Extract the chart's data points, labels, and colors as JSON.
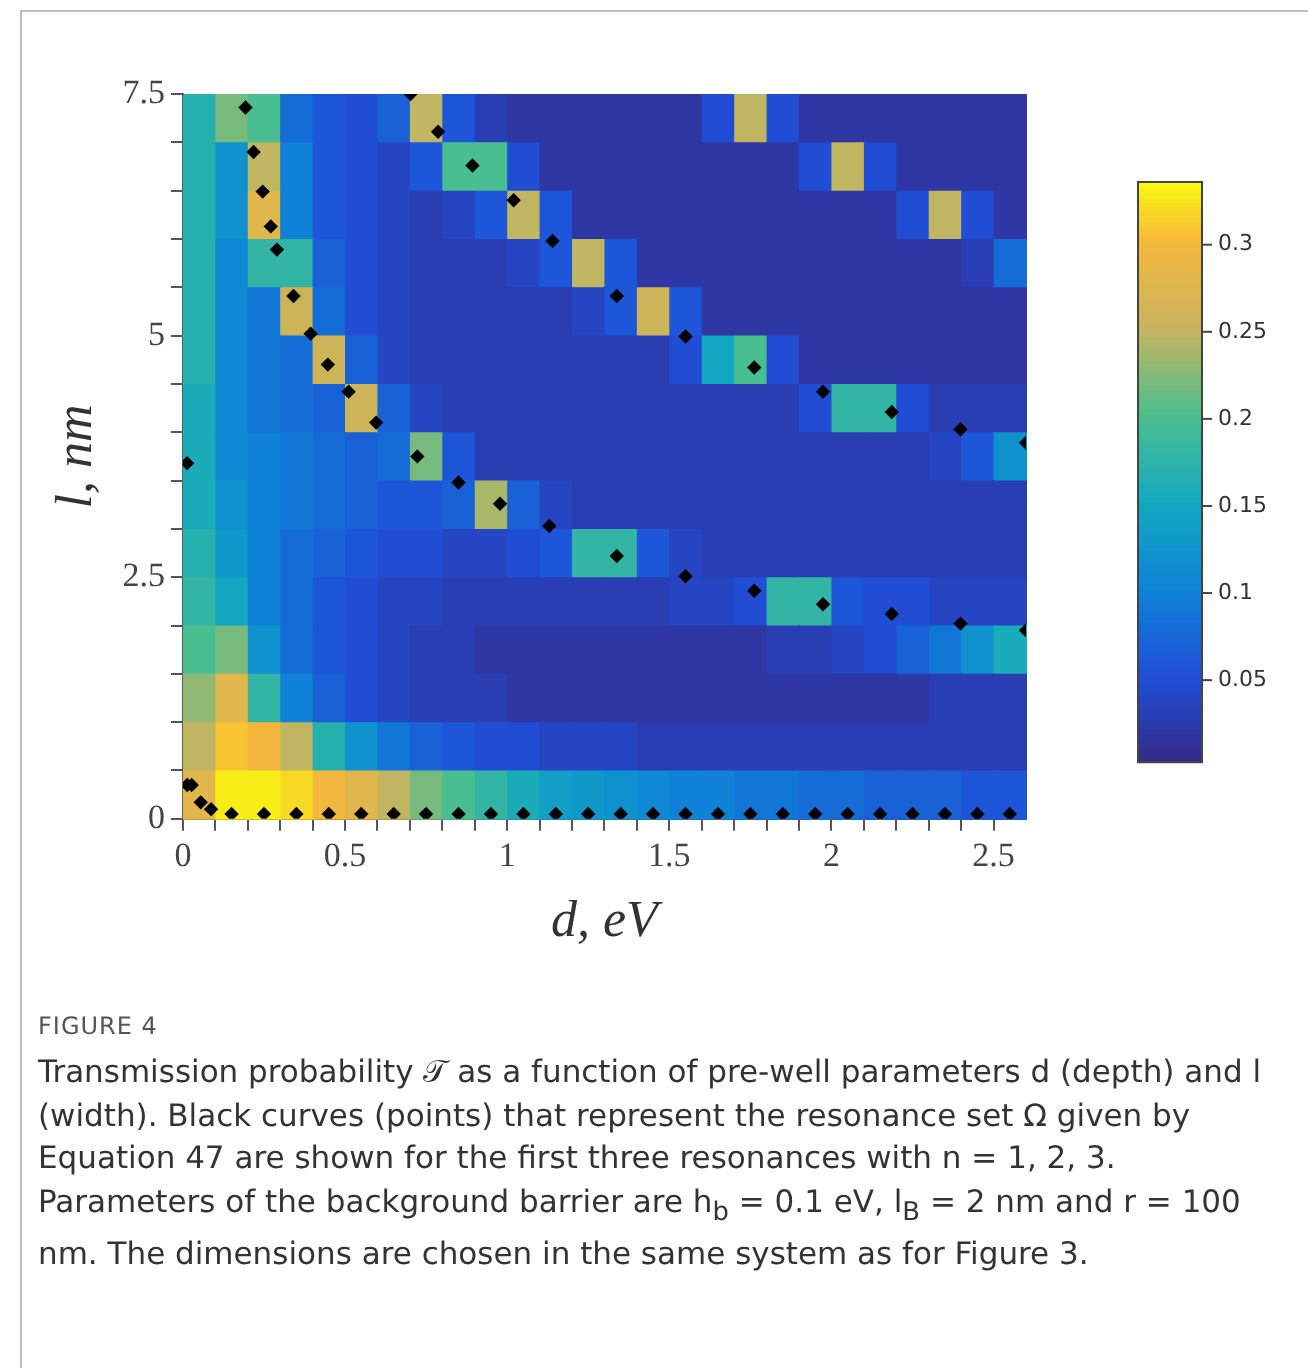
{
  "chart_data": {
    "type": "heatmap",
    "xlabel": "d, eV",
    "ylabel": "l, nm",
    "x": [
      0.05,
      0.15,
      0.25,
      0.35,
      0.45,
      0.55,
      0.65,
      0.75,
      0.85,
      0.95,
      1.05,
      1.15,
      1.25,
      1.35,
      1.45,
      1.55,
      1.65,
      1.75,
      1.85,
      1.95,
      2.05,
      2.15,
      2.25,
      2.35,
      2.45,
      2.55
    ],
    "y": [
      7.25,
      6.75,
      6.25,
      5.75,
      5.25,
      4.75,
      4.25,
      3.75,
      3.25,
      2.75,
      2.25,
      1.75,
      1.25,
      0.75,
      0.25
    ],
    "cells": [
      [
        0.17,
        0.22,
        0.2,
        0.08,
        0.06,
        0.05,
        0.07,
        0.25,
        0.06,
        0.03,
        0.02,
        0.02,
        0.02,
        0.02,
        0.02,
        0.02,
        0.05,
        0.25,
        0.05,
        0.02,
        0.02,
        0.02,
        0.02,
        0.02,
        0.02,
        0.02
      ],
      [
        0.17,
        0.12,
        0.25,
        0.1,
        0.06,
        0.05,
        0.04,
        0.06,
        0.2,
        0.2,
        0.05,
        0.02,
        0.02,
        0.02,
        0.02,
        0.02,
        0.02,
        0.02,
        0.02,
        0.05,
        0.25,
        0.05,
        0.02,
        0.02,
        0.02,
        0.02
      ],
      [
        0.17,
        0.12,
        0.28,
        0.1,
        0.06,
        0.05,
        0.04,
        0.03,
        0.04,
        0.06,
        0.25,
        0.06,
        0.02,
        0.02,
        0.02,
        0.02,
        0.02,
        0.02,
        0.02,
        0.02,
        0.02,
        0.02,
        0.05,
        0.25,
        0.05,
        0.02
      ],
      [
        0.17,
        0.11,
        0.18,
        0.18,
        0.07,
        0.05,
        0.04,
        0.03,
        0.03,
        0.03,
        0.04,
        0.06,
        0.25,
        0.06,
        0.02,
        0.02,
        0.02,
        0.02,
        0.02,
        0.02,
        0.02,
        0.02,
        0.02,
        0.02,
        0.03,
        0.08
      ],
      [
        0.17,
        0.11,
        0.09,
        0.26,
        0.08,
        0.05,
        0.04,
        0.03,
        0.03,
        0.03,
        0.03,
        0.03,
        0.04,
        0.06,
        0.26,
        0.06,
        0.02,
        0.02,
        0.02,
        0.02,
        0.02,
        0.02,
        0.02,
        0.02,
        0.02,
        0.02
      ],
      [
        0.17,
        0.11,
        0.09,
        0.08,
        0.26,
        0.07,
        0.04,
        0.03,
        0.03,
        0.03,
        0.03,
        0.03,
        0.03,
        0.03,
        0.03,
        0.05,
        0.15,
        0.2,
        0.05,
        0.02,
        0.02,
        0.02,
        0.02,
        0.02,
        0.02,
        0.02
      ],
      [
        0.16,
        0.11,
        0.09,
        0.08,
        0.07,
        0.26,
        0.07,
        0.04,
        0.03,
        0.03,
        0.03,
        0.03,
        0.03,
        0.03,
        0.03,
        0.03,
        0.03,
        0.03,
        0.03,
        0.05,
        0.18,
        0.18,
        0.05,
        0.03,
        0.03,
        0.03
      ],
      [
        0.16,
        0.11,
        0.1,
        0.09,
        0.08,
        0.07,
        0.08,
        0.22,
        0.06,
        0.03,
        0.03,
        0.03,
        0.03,
        0.03,
        0.03,
        0.03,
        0.03,
        0.03,
        0.03,
        0.03,
        0.03,
        0.03,
        0.03,
        0.04,
        0.06,
        0.12
      ],
      [
        0.16,
        0.12,
        0.1,
        0.09,
        0.08,
        0.07,
        0.06,
        0.06,
        0.07,
        0.24,
        0.07,
        0.04,
        0.03,
        0.03,
        0.03,
        0.03,
        0.03,
        0.03,
        0.03,
        0.03,
        0.03,
        0.03,
        0.03,
        0.03,
        0.03,
        0.03
      ],
      [
        0.17,
        0.13,
        0.1,
        0.08,
        0.07,
        0.06,
        0.05,
        0.05,
        0.04,
        0.04,
        0.05,
        0.06,
        0.18,
        0.18,
        0.06,
        0.04,
        0.03,
        0.03,
        0.03,
        0.03,
        0.03,
        0.03,
        0.03,
        0.03,
        0.03,
        0.03
      ],
      [
        0.18,
        0.15,
        0.1,
        0.08,
        0.06,
        0.05,
        0.04,
        0.04,
        0.03,
        0.03,
        0.03,
        0.03,
        0.03,
        0.03,
        0.03,
        0.04,
        0.04,
        0.05,
        0.18,
        0.18,
        0.06,
        0.05,
        0.05,
        0.04,
        0.04,
        0.04
      ],
      [
        0.2,
        0.22,
        0.12,
        0.08,
        0.06,
        0.05,
        0.04,
        0.03,
        0.03,
        0.02,
        0.02,
        0.02,
        0.02,
        0.02,
        0.02,
        0.02,
        0.02,
        0.02,
        0.03,
        0.03,
        0.04,
        0.05,
        0.07,
        0.09,
        0.12,
        0.16
      ],
      [
        0.23,
        0.28,
        0.18,
        0.1,
        0.07,
        0.05,
        0.04,
        0.03,
        0.03,
        0.03,
        0.02,
        0.02,
        0.02,
        0.02,
        0.02,
        0.02,
        0.02,
        0.02,
        0.02,
        0.02,
        0.02,
        0.02,
        0.02,
        0.03,
        0.03,
        0.03
      ],
      [
        0.25,
        0.31,
        0.3,
        0.25,
        0.17,
        0.12,
        0.09,
        0.07,
        0.06,
        0.05,
        0.05,
        0.04,
        0.04,
        0.04,
        0.03,
        0.03,
        0.03,
        0.03,
        0.03,
        0.03,
        0.03,
        0.03,
        0.03,
        0.03,
        0.03,
        0.03
      ],
      [
        0.28,
        0.33,
        0.33,
        0.32,
        0.3,
        0.28,
        0.25,
        0.22,
        0.2,
        0.18,
        0.16,
        0.14,
        0.13,
        0.12,
        0.11,
        0.1,
        0.1,
        0.09,
        0.09,
        0.08,
        0.08,
        0.07,
        0.07,
        0.07,
        0.06,
        0.06
      ]
    ],
    "clim": [
      0.003,
      0.336
    ],
    "cticks": [
      0.05,
      0.1,
      0.15,
      0.2,
      0.25,
      0.3
    ],
    "xlim": [
      0,
      2.6
    ],
    "ylim": [
      0,
      7.5
    ],
    "xticks": [
      0,
      {
        "value": 0.1,
        "label": null
      },
      {
        "value": 0.2,
        "label": null
      },
      {
        "value": 0.3,
        "label": null
      },
      {
        "value": 0.4,
        "label": null
      },
      0.5,
      {
        "value": 0.6,
        "label": null
      },
      {
        "value": 0.7,
        "label": null
      },
      {
        "value": 0.8,
        "label": null
      },
      {
        "value": 0.9,
        "label": null
      },
      1,
      {
        "value": 1.1,
        "label": null
      },
      {
        "value": 1.2,
        "label": null
      },
      {
        "value": 1.3,
        "label": null
      },
      {
        "value": 1.4,
        "label": null
      },
      1.5,
      {
        "value": 1.6,
        "label": null
      },
      {
        "value": 1.7,
        "label": null
      },
      {
        "value": 1.8,
        "label": null
      },
      {
        "value": 1.9,
        "label": null
      },
      2,
      {
        "value": 2.1,
        "label": null
      },
      {
        "value": 2.2,
        "label": null
      },
      {
        "value": 2.3,
        "label": null
      },
      {
        "value": 2.4,
        "label": null
      },
      2.5
    ],
    "yticks": [
      0,
      {
        "value": 0.5,
        "label": null
      },
      {
        "value": 1,
        "label": null
      },
      {
        "value": 1.5,
        "label": null
      },
      {
        "value": 2,
        "label": null
      },
      2.5,
      {
        "value": 3,
        "label": null
      },
      {
        "value": 3.5,
        "label": null
      },
      {
        "value": 4,
        "label": null
      },
      {
        "value": 4.5,
        "label": null
      },
      5,
      {
        "value": 5.5,
        "label": null
      },
      {
        "value": 6,
        "label": null
      },
      {
        "value": 6.5,
        "label": null
      },
      {
        "value": 7,
        "label": null
      },
      7.5
    ],
    "grid": false,
    "legend": false,
    "marker": "diamond",
    "series": [
      {
        "type": "scatter",
        "color": "#000000",
        "x": [
          0.193,
          0.218,
          0.246,
          0.271,
          0.29,
          0.341,
          0.394,
          0.447,
          0.511,
          0.596,
          0.723,
          0.85,
          0.978,
          1.13,
          1.338,
          1.55,
          1.762,
          1.974,
          2.186,
          2.398,
          2.6,
          0.702,
          0.787,
          0.893,
          1.02,
          1.14,
          1.338,
          1.55,
          1.762,
          1.974,
          2.186,
          2.398,
          2.6,
          0.013,
          0.027,
          0.055,
          0.087,
          0.15,
          0.25,
          0.35,
          0.45,
          0.55,
          0.65,
          0.75,
          0.85,
          0.95,
          1.05,
          1.15,
          1.25,
          1.35,
          1.45,
          1.55,
          1.65,
          1.75,
          1.85,
          1.95,
          2.05,
          2.15,
          2.25,
          2.35,
          2.45,
          2.55,
          0.013
        ],
        "values": [
          7.36,
          6.9,
          6.49,
          6.13,
          5.89,
          5.41,
          5.02,
          4.7,
          4.42,
          4.1,
          3.75,
          3.48,
          3.26,
          3.03,
          2.72,
          2.51,
          2.36,
          2.22,
          2.12,
          2.02,
          1.95,
          7.5,
          7.11,
          6.76,
          6.4,
          5.98,
          5.41,
          4.99,
          4.67,
          4.42,
          4.21,
          4.03,
          3.89,
          0.35,
          0.35,
          0.17,
          0.1,
          0.05,
          0.05,
          0.05,
          0.05,
          0.05,
          0.05,
          0.05,
          0.05,
          0.05,
          0.05,
          0.05,
          0.05,
          0.05,
          0.05,
          0.05,
          0.05,
          0.05,
          0.05,
          0.05,
          0.05,
          0.05,
          0.05,
          0.05,
          0.05,
          0.05,
          3.68
        ]
      }
    ],
    "annotations": [
      "FIGURE 4",
      "Transmission probability 𝒯 as a function of pre-well parameters d (depth) and l (width). Black curves (points) that represent the resonance set Ω given by Equation 47 are shown for the first three resonances with n = 1, 2, 3. Parameters of the background barrier are h$_{b}$ = 0.1 eV, l$_{B}$ = 2 nm and r = 100 nm. The dimensions are chosen in the same system as for Figure 3."
    ]
  }
}
